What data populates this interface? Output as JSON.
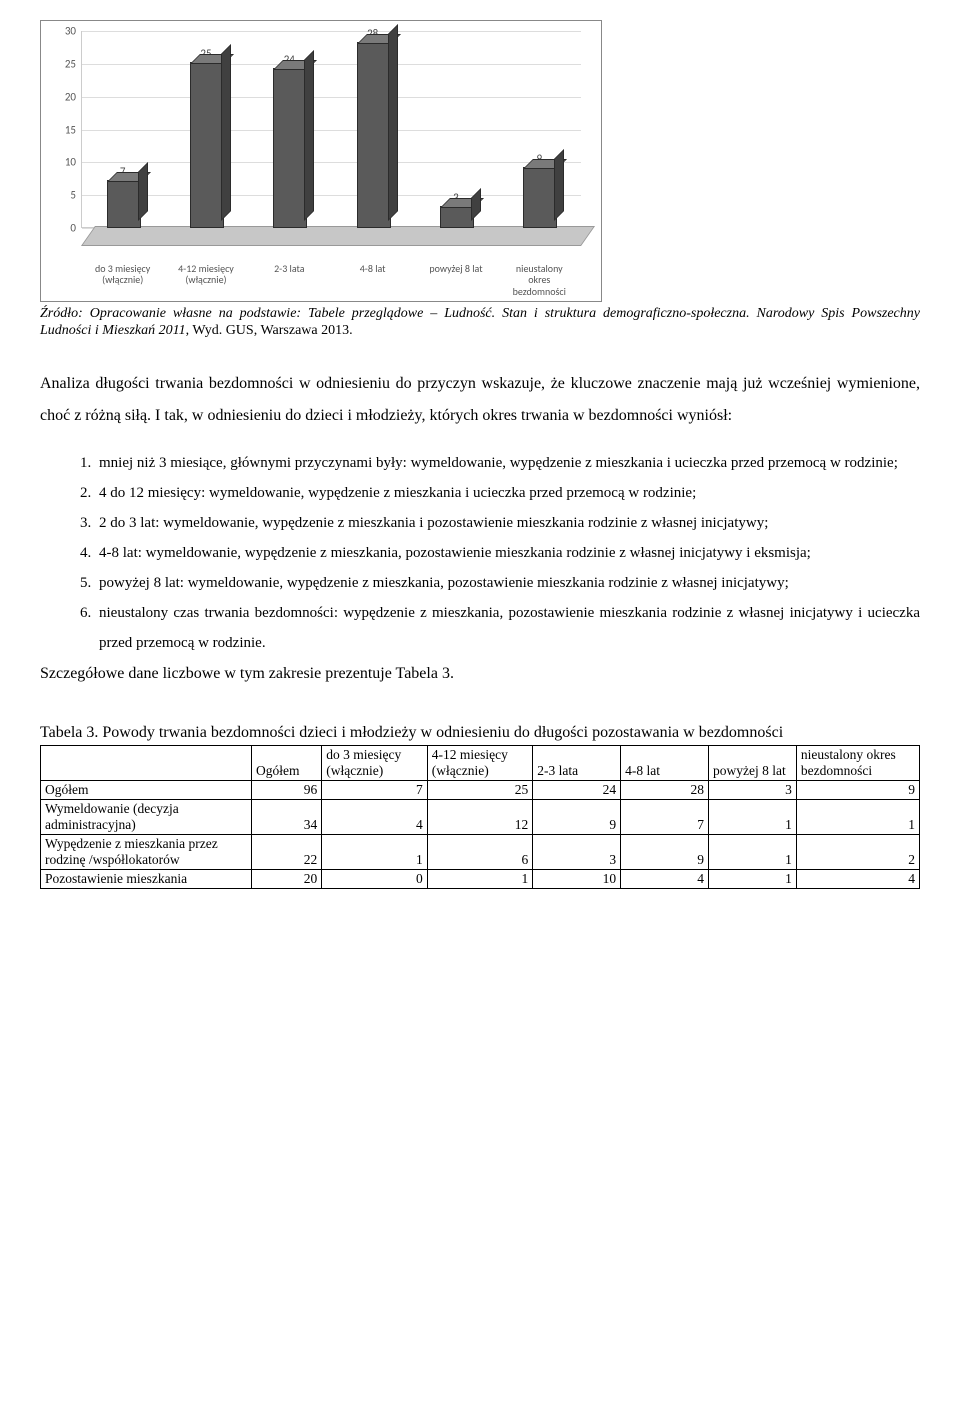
{
  "chart": {
    "type": "bar-3d",
    "categories": [
      "do 3 miesięcy (włącznie)",
      "4-12 miesięcy (włącznie)",
      "2-3 lata",
      "4-8 lat",
      "powyżej 8 lat",
      "nieustalony okres bezdomności"
    ],
    "values": [
      7,
      25,
      24,
      28,
      3,
      9
    ],
    "ylim": [
      0,
      30
    ],
    "ytick_step": 5,
    "bar_color": "#5a5a5a",
    "bar_top_color": "#7a7a7a",
    "bar_side_color": "#404040",
    "floor_color": "#c7c7c7",
    "grid_color": "#dddddd",
    "label_fontsize": 11,
    "tick_fontsize": 11,
    "background_color": "#ffffff"
  },
  "source": {
    "prefix": "Źródło: Opracowanie własne na podstawie: Tabele przeglądowe – Ludność. Stan i struktura demograficzno-społeczna. Narodowy Spis Powszechny Ludności i Mieszkań 2011",
    "suffix": ", Wyd. GUS, Warszawa 2013."
  },
  "para1": "Analiza długości trwania bezdomności w odniesieniu do przyczyn wskazuje, że kluczowe znaczenie mają już wcześniej wymienione, choć z różną siłą. I tak, w odniesieniu do dzieci i młodzieży, których okres trwania w bezdomności wyniósł:",
  "list": {
    "i1": "mniej niż 3 miesiące, głównymi przyczynami były: wymeldowanie, wypędzenie z mieszkania i ucieczka przed przemocą w rodzinie;",
    "i2": "4 do 12 miesięcy: wymeldowanie, wypędzenie z mieszkania i ucieczka przed przemocą w rodzinie;",
    "i3": "2 do 3 lat: wymeldowanie, wypędzenie z mieszkania i pozostawienie mieszkania rodzinie z własnej inicjatywy;",
    "i4": "4-8 lat: wymeldowanie, wypędzenie z mieszkania, pozostawienie mieszkania rodzinie z własnej inicjatywy i eksmisja;",
    "i5": "powyżej 8 lat: wymeldowanie, wypędzenie z mieszkania, pozostawienie mieszkania rodzinie z własnej inicjatywy;",
    "i6": "nieustalony czas trwania bezdomności: wypędzenie z mieszkania, pozostawienie mieszkania rodzinie z własnej inicjatywy i ucieczka przed przemocą w rodzinie."
  },
  "para2": "Szczegółowe dane liczbowe w tym zakresie prezentuje Tabela 3.",
  "table_caption": "Tabela 3. Powody trwania bezdomności dzieci i młodzieży w odniesieniu do długości pozostawania w bezdomności",
  "table": {
    "columns": [
      "",
      "Ogółem",
      "do 3 miesięcy (włącznie)",
      "4-12 miesięcy (włącznie)",
      "2-3 lata",
      "4-8 lat",
      "powyżej 8 lat",
      "nieustalony okres bezdomności"
    ],
    "rows": [
      [
        "Ogółem",
        96,
        7,
        25,
        24,
        28,
        3,
        9
      ],
      [
        "Wymeldowanie (decyzja administracyjna)",
        34,
        4,
        12,
        9,
        7,
        1,
        1
      ],
      [
        "Wypędzenie z mieszkania przez rodzinę /współlokatorów",
        22,
        1,
        6,
        3,
        9,
        1,
        2
      ],
      [
        "Pozostawienie mieszkania",
        20,
        0,
        1,
        10,
        4,
        1,
        4
      ]
    ],
    "col_widths": [
      "24%",
      "8%",
      "12%",
      "12%",
      "10%",
      "10%",
      "10%",
      "14%"
    ]
  }
}
